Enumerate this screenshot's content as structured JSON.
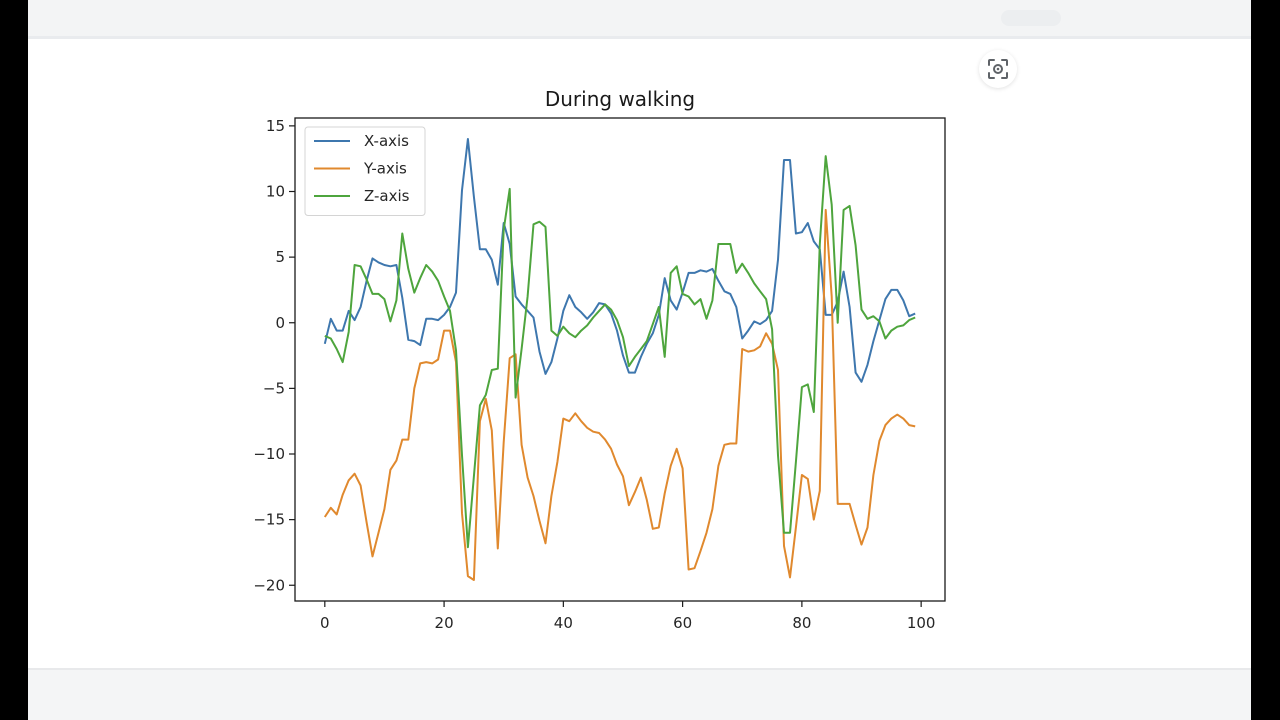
{
  "chart_data": {
    "type": "line",
    "title": "During walking",
    "xlabel": "",
    "ylabel": "",
    "xlim": [
      -5,
      104
    ],
    "ylim": [
      -21.2,
      15.6
    ],
    "xticks": [
      0,
      20,
      40,
      60,
      80,
      100
    ],
    "yticks": [
      15,
      10,
      5,
      0,
      -5,
      -10,
      -15,
      -20
    ],
    "xtick_labels": [
      "0",
      "20",
      "40",
      "60",
      "80",
      "100"
    ],
    "ytick_labels": [
      "15",
      "10",
      "5",
      "0",
      "−5",
      "−10",
      "−15",
      "−20"
    ],
    "grid": false,
    "legend_position": "top-left",
    "series": [
      {
        "name": "X-axis",
        "color": "#3e77ae",
        "points": [
          [
            0,
            -1.6
          ],
          [
            1,
            0.3
          ],
          [
            2,
            -0.6
          ],
          [
            3,
            -0.6
          ],
          [
            4,
            0.9
          ],
          [
            5,
            0.2
          ],
          [
            6,
            1.2
          ],
          [
            7,
            3.2
          ],
          [
            8,
            4.9
          ],
          [
            9,
            4.6
          ],
          [
            10,
            4.4
          ],
          [
            11,
            4.3
          ],
          [
            12,
            4.4
          ],
          [
            13,
            1.9
          ],
          [
            14,
            -1.3
          ],
          [
            15,
            -1.4
          ],
          [
            16,
            -1.7
          ],
          [
            17,
            0.3
          ],
          [
            18,
            0.3
          ],
          [
            19,
            0.2
          ],
          [
            20,
            0.6
          ],
          [
            21,
            1.2
          ],
          [
            22,
            2.3
          ],
          [
            23,
            10.1
          ],
          [
            24,
            14.0
          ],
          [
            25,
            9.6
          ],
          [
            26,
            5.6
          ],
          [
            27,
            5.6
          ],
          [
            28,
            4.8
          ],
          [
            29,
            2.9
          ],
          [
            30,
            7.6
          ],
          [
            31,
            6.0
          ],
          [
            32,
            2.0
          ],
          [
            33,
            1.4
          ],
          [
            34,
            0.9
          ],
          [
            35,
            0.4
          ],
          [
            36,
            -2.2
          ],
          [
            37,
            -3.9
          ],
          [
            38,
            -3.0
          ],
          [
            39,
            -1.2
          ],
          [
            40,
            0.9
          ],
          [
            41,
            2.1
          ],
          [
            42,
            1.2
          ],
          [
            43,
            0.8
          ],
          [
            44,
            0.3
          ],
          [
            45,
            0.8
          ],
          [
            46,
            1.5
          ],
          [
            47,
            1.4
          ],
          [
            48,
            0.7
          ],
          [
            49,
            -0.6
          ],
          [
            50,
            -2.5
          ],
          [
            51,
            -3.8
          ],
          [
            52,
            -3.8
          ],
          [
            53,
            -2.6
          ],
          [
            54,
            -1.6
          ],
          [
            55,
            -0.8
          ],
          [
            56,
            0.6
          ],
          [
            57,
            3.4
          ],
          [
            58,
            1.7
          ],
          [
            59,
            1.0
          ],
          [
            60,
            2.3
          ],
          [
            61,
            3.8
          ],
          [
            62,
            3.8
          ],
          [
            63,
            4.0
          ],
          [
            64,
            3.9
          ],
          [
            65,
            4.1
          ],
          [
            66,
            3.2
          ],
          [
            67,
            2.4
          ],
          [
            68,
            2.2
          ],
          [
            69,
            1.2
          ],
          [
            70,
            -1.2
          ],
          [
            71,
            -0.6
          ],
          [
            72,
            0.1
          ],
          [
            73,
            -0.1
          ],
          [
            74,
            0.2
          ],
          [
            75,
            0.9
          ],
          [
            76,
            4.8
          ],
          [
            77,
            12.4
          ],
          [
            78,
            12.4
          ],
          [
            79,
            6.8
          ],
          [
            80,
            6.9
          ],
          [
            81,
            7.6
          ],
          [
            82,
            6.2
          ],
          [
            83,
            5.6
          ],
          [
            84,
            0.6
          ],
          [
            85,
            0.6
          ],
          [
            86,
            1.6
          ],
          [
            87,
            3.9
          ],
          [
            88,
            1.2
          ],
          [
            89,
            -3.8
          ],
          [
            90,
            -4.5
          ],
          [
            91,
            -3.2
          ],
          [
            92,
            -1.4
          ],
          [
            93,
            0.2
          ],
          [
            94,
            1.8
          ],
          [
            95,
            2.5
          ],
          [
            96,
            2.5
          ],
          [
            97,
            1.7
          ],
          [
            98,
            0.5
          ],
          [
            99,
            0.7
          ]
        ]
      },
      {
        "name": "Y-axis",
        "color": "#e0892e",
        "points": [
          [
            0,
            -14.8
          ],
          [
            1,
            -14.1
          ],
          [
            2,
            -14.6
          ],
          [
            3,
            -13.1
          ],
          [
            4,
            -12.0
          ],
          [
            5,
            -11.5
          ],
          [
            6,
            -12.4
          ],
          [
            7,
            -15.2
          ],
          [
            8,
            -17.8
          ],
          [
            9,
            -16.0
          ],
          [
            10,
            -14.2
          ],
          [
            11,
            -11.2
          ],
          [
            12,
            -10.5
          ],
          [
            13,
            -8.9
          ],
          [
            14,
            -8.9
          ],
          [
            15,
            -5.0
          ],
          [
            16,
            -3.1
          ],
          [
            17,
            -3.0
          ],
          [
            18,
            -3.1
          ],
          [
            19,
            -2.8
          ],
          [
            20,
            -0.6
          ],
          [
            21,
            -0.6
          ],
          [
            22,
            -3.0
          ],
          [
            23,
            -14.5
          ],
          [
            24,
            -19.3
          ],
          [
            25,
            -19.6
          ],
          [
            26,
            -7.5
          ],
          [
            27,
            -5.8
          ],
          [
            28,
            -8.2
          ],
          [
            29,
            -17.2
          ],
          [
            30,
            -9.1
          ],
          [
            31,
            -2.7
          ],
          [
            32,
            -2.4
          ],
          [
            33,
            -9.3
          ],
          [
            34,
            -11.8
          ],
          [
            35,
            -13.2
          ],
          [
            36,
            -15.1
          ],
          [
            37,
            -16.8
          ],
          [
            38,
            -13.2
          ],
          [
            39,
            -10.6
          ],
          [
            40,
            -7.3
          ],
          [
            41,
            -7.5
          ],
          [
            42,
            -6.9
          ],
          [
            43,
            -7.5
          ],
          [
            44,
            -8.0
          ],
          [
            45,
            -8.3
          ],
          [
            46,
            -8.4
          ],
          [
            47,
            -8.9
          ],
          [
            48,
            -9.6
          ],
          [
            49,
            -10.8
          ],
          [
            50,
            -11.7
          ],
          [
            51,
            -13.9
          ],
          [
            52,
            -12.9
          ],
          [
            53,
            -11.8
          ],
          [
            54,
            -13.5
          ],
          [
            55,
            -15.7
          ],
          [
            56,
            -15.6
          ],
          [
            57,
            -13.0
          ],
          [
            58,
            -10.9
          ],
          [
            59,
            -9.6
          ],
          [
            60,
            -11.1
          ],
          [
            61,
            -18.8
          ],
          [
            62,
            -18.7
          ],
          [
            63,
            -17.4
          ],
          [
            64,
            -16.0
          ],
          [
            65,
            -14.2
          ],
          [
            66,
            -10.9
          ],
          [
            67,
            -9.3
          ],
          [
            68,
            -9.2
          ],
          [
            69,
            -9.2
          ],
          [
            70,
            -2.0
          ],
          [
            71,
            -2.2
          ],
          [
            72,
            -2.1
          ],
          [
            73,
            -1.8
          ],
          [
            74,
            -0.8
          ],
          [
            75,
            -1.6
          ],
          [
            76,
            -3.6
          ],
          [
            77,
            -17.0
          ],
          [
            78,
            -19.4
          ],
          [
            79,
            -15.6
          ],
          [
            80,
            -11.6
          ],
          [
            81,
            -11.9
          ],
          [
            82,
            -15.0
          ],
          [
            83,
            -12.8
          ],
          [
            84,
            8.6
          ],
          [
            85,
            2.0
          ],
          [
            86,
            -13.8
          ],
          [
            87,
            -13.8
          ],
          [
            88,
            -13.8
          ],
          [
            89,
            -15.4
          ],
          [
            90,
            -16.9
          ],
          [
            91,
            -15.6
          ],
          [
            92,
            -11.6
          ],
          [
            93,
            -9.0
          ],
          [
            94,
            -7.8
          ],
          [
            95,
            -7.3
          ],
          [
            96,
            -7.0
          ],
          [
            97,
            -7.3
          ],
          [
            98,
            -7.8
          ],
          [
            99,
            -7.9
          ]
        ]
      },
      {
        "name": "Z-axis",
        "color": "#4ea53d",
        "points": [
          [
            0,
            -1.0
          ],
          [
            1,
            -1.2
          ],
          [
            2,
            -2.0
          ],
          [
            3,
            -3.0
          ],
          [
            4,
            -0.7
          ],
          [
            5,
            4.4
          ],
          [
            6,
            4.3
          ],
          [
            7,
            3.3
          ],
          [
            8,
            2.2
          ],
          [
            9,
            2.2
          ],
          [
            10,
            1.8
          ],
          [
            11,
            0.1
          ],
          [
            12,
            1.7
          ],
          [
            13,
            6.8
          ],
          [
            14,
            4.1
          ],
          [
            15,
            2.3
          ],
          [
            16,
            3.4
          ],
          [
            17,
            4.4
          ],
          [
            18,
            3.9
          ],
          [
            19,
            3.2
          ],
          [
            20,
            2.0
          ],
          [
            21,
            0.9
          ],
          [
            22,
            -2.1
          ],
          [
            23,
            -10.1
          ],
          [
            24,
            -17.1
          ],
          [
            25,
            -11.7
          ],
          [
            26,
            -6.3
          ],
          [
            27,
            -5.5
          ],
          [
            28,
            -3.6
          ],
          [
            29,
            -3.5
          ],
          [
            30,
            7.1
          ],
          [
            31,
            10.2
          ],
          [
            32,
            -5.7
          ],
          [
            33,
            -2.0
          ],
          [
            34,
            2.0
          ],
          [
            35,
            7.5
          ],
          [
            36,
            7.7
          ],
          [
            37,
            7.3
          ],
          [
            38,
            -0.6
          ],
          [
            39,
            -1.0
          ],
          [
            40,
            -0.3
          ],
          [
            41,
            -0.8
          ],
          [
            42,
            -1.1
          ],
          [
            43,
            -0.6
          ],
          [
            44,
            -0.2
          ],
          [
            45,
            0.4
          ],
          [
            46,
            0.9
          ],
          [
            47,
            1.4
          ],
          [
            48,
            1.0
          ],
          [
            49,
            0.2
          ],
          [
            50,
            -1.1
          ],
          [
            51,
            -3.3
          ],
          [
            52,
            -2.6
          ],
          [
            53,
            -2.0
          ],
          [
            54,
            -1.4
          ],
          [
            55,
            -0.1
          ],
          [
            56,
            1.2
          ],
          [
            57,
            -2.6
          ],
          [
            58,
            3.8
          ],
          [
            59,
            4.3
          ],
          [
            60,
            2.2
          ],
          [
            61,
            2.0
          ],
          [
            62,
            1.4
          ],
          [
            63,
            1.8
          ],
          [
            64,
            0.3
          ],
          [
            65,
            1.7
          ],
          [
            66,
            6.0
          ],
          [
            67,
            6.0
          ],
          [
            68,
            6.0
          ],
          [
            69,
            3.8
          ],
          [
            70,
            4.5
          ],
          [
            71,
            3.8
          ],
          [
            72,
            3.0
          ],
          [
            73,
            2.4
          ],
          [
            74,
            1.8
          ],
          [
            75,
            -0.5
          ],
          [
            76,
            -10.1
          ],
          [
            77,
            -16.0
          ],
          [
            78,
            -16.0
          ],
          [
            79,
            -10.6
          ],
          [
            80,
            -4.9
          ],
          [
            81,
            -4.7
          ],
          [
            82,
            -6.8
          ],
          [
            83,
            6.0
          ],
          [
            84,
            12.7
          ],
          [
            85,
            9.0
          ],
          [
            86,
            0.0
          ],
          [
            87,
            8.6
          ],
          [
            88,
            8.9
          ],
          [
            89,
            5.9
          ],
          [
            90,
            1.0
          ],
          [
            91,
            0.3
          ],
          [
            92,
            0.5
          ],
          [
            93,
            0.1
          ],
          [
            94,
            -1.2
          ],
          [
            95,
            -0.6
          ],
          [
            96,
            -0.3
          ],
          [
            97,
            -0.2
          ],
          [
            98,
            0.2
          ],
          [
            99,
            0.4
          ]
        ]
      }
    ]
  }
}
